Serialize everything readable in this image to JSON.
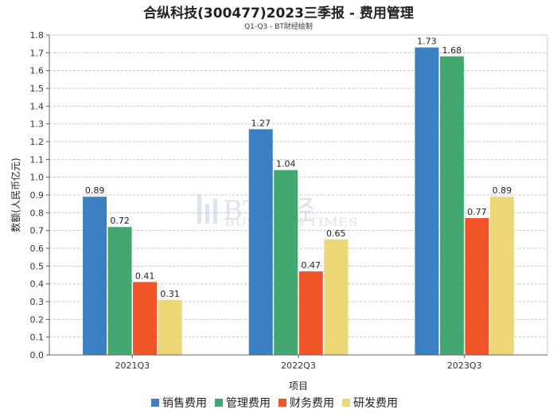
{
  "chart_data": {
    "type": "bar",
    "title": "合纵科技(300477)2023三季报 - 费用管理",
    "subtitle": "Q1-Q3 - BT财经绘制",
    "xlabel": "项目",
    "ylabel": "数额(人民币亿元)",
    "ylim": [
      0,
      1.8
    ],
    "ytick_step": 0.1,
    "grid": true,
    "legend_position": "bottom",
    "categories": [
      "2021Q3",
      "2022Q3",
      "2023Q3"
    ],
    "series": [
      {
        "name": "销售费用",
        "color": "#3a80c2",
        "values": [
          0.89,
          1.27,
          1.73
        ]
      },
      {
        "name": "管理费用",
        "color": "#43a86f",
        "values": [
          0.72,
          1.04,
          1.68
        ]
      },
      {
        "name": "财务费用",
        "color": "#ef5526",
        "values": [
          0.41,
          0.47,
          0.77
        ]
      },
      {
        "name": "研发费用",
        "color": "#ecd676",
        "values": [
          0.31,
          0.65,
          0.89
        ]
      }
    ],
    "watermark": {
      "main": "BT财经",
      "sub": "BUSINESS TIMES"
    }
  }
}
